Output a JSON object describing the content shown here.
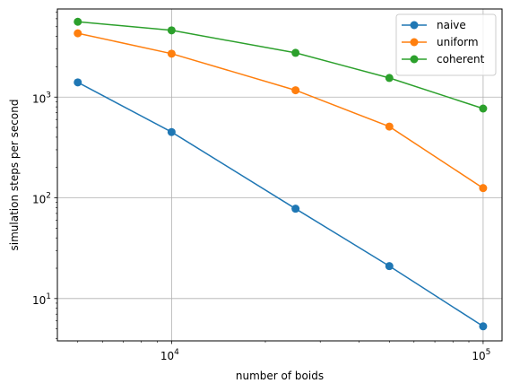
{
  "chart_data": {
    "type": "line",
    "title": "",
    "xlabel": "number of boids",
    "ylabel": "simulation steps per second",
    "xscale": "log",
    "yscale": "log",
    "xlim": [
      4300,
      115000
    ],
    "ylim": [
      3.8,
      7500
    ],
    "grid": true,
    "legend_position": "top-right",
    "x": [
      5000,
      10000,
      25000,
      50000,
      100000
    ],
    "series": [
      {
        "name": "naive",
        "color": "#1f77b4",
        "values": [
          1400,
          450,
          78,
          21,
          5.3
        ]
      },
      {
        "name": "uniform",
        "color": "#ff7f0e",
        "values": [
          4300,
          2700,
          1170,
          510,
          125
        ]
      },
      {
        "name": "coherent",
        "color": "#2ca02c",
        "values": [
          5600,
          4600,
          2750,
          1550,
          770
        ]
      }
    ],
    "x_ticks": [
      {
        "base": "10",
        "exp": "4",
        "value": 10000
      },
      {
        "base": "10",
        "exp": "5",
        "value": 100000
      }
    ],
    "y_ticks": [
      {
        "base": "10",
        "exp": "1",
        "value": 10
      },
      {
        "base": "10",
        "exp": "2",
        "value": 100
      },
      {
        "base": "10",
        "exp": "3",
        "value": 1000
      }
    ]
  }
}
